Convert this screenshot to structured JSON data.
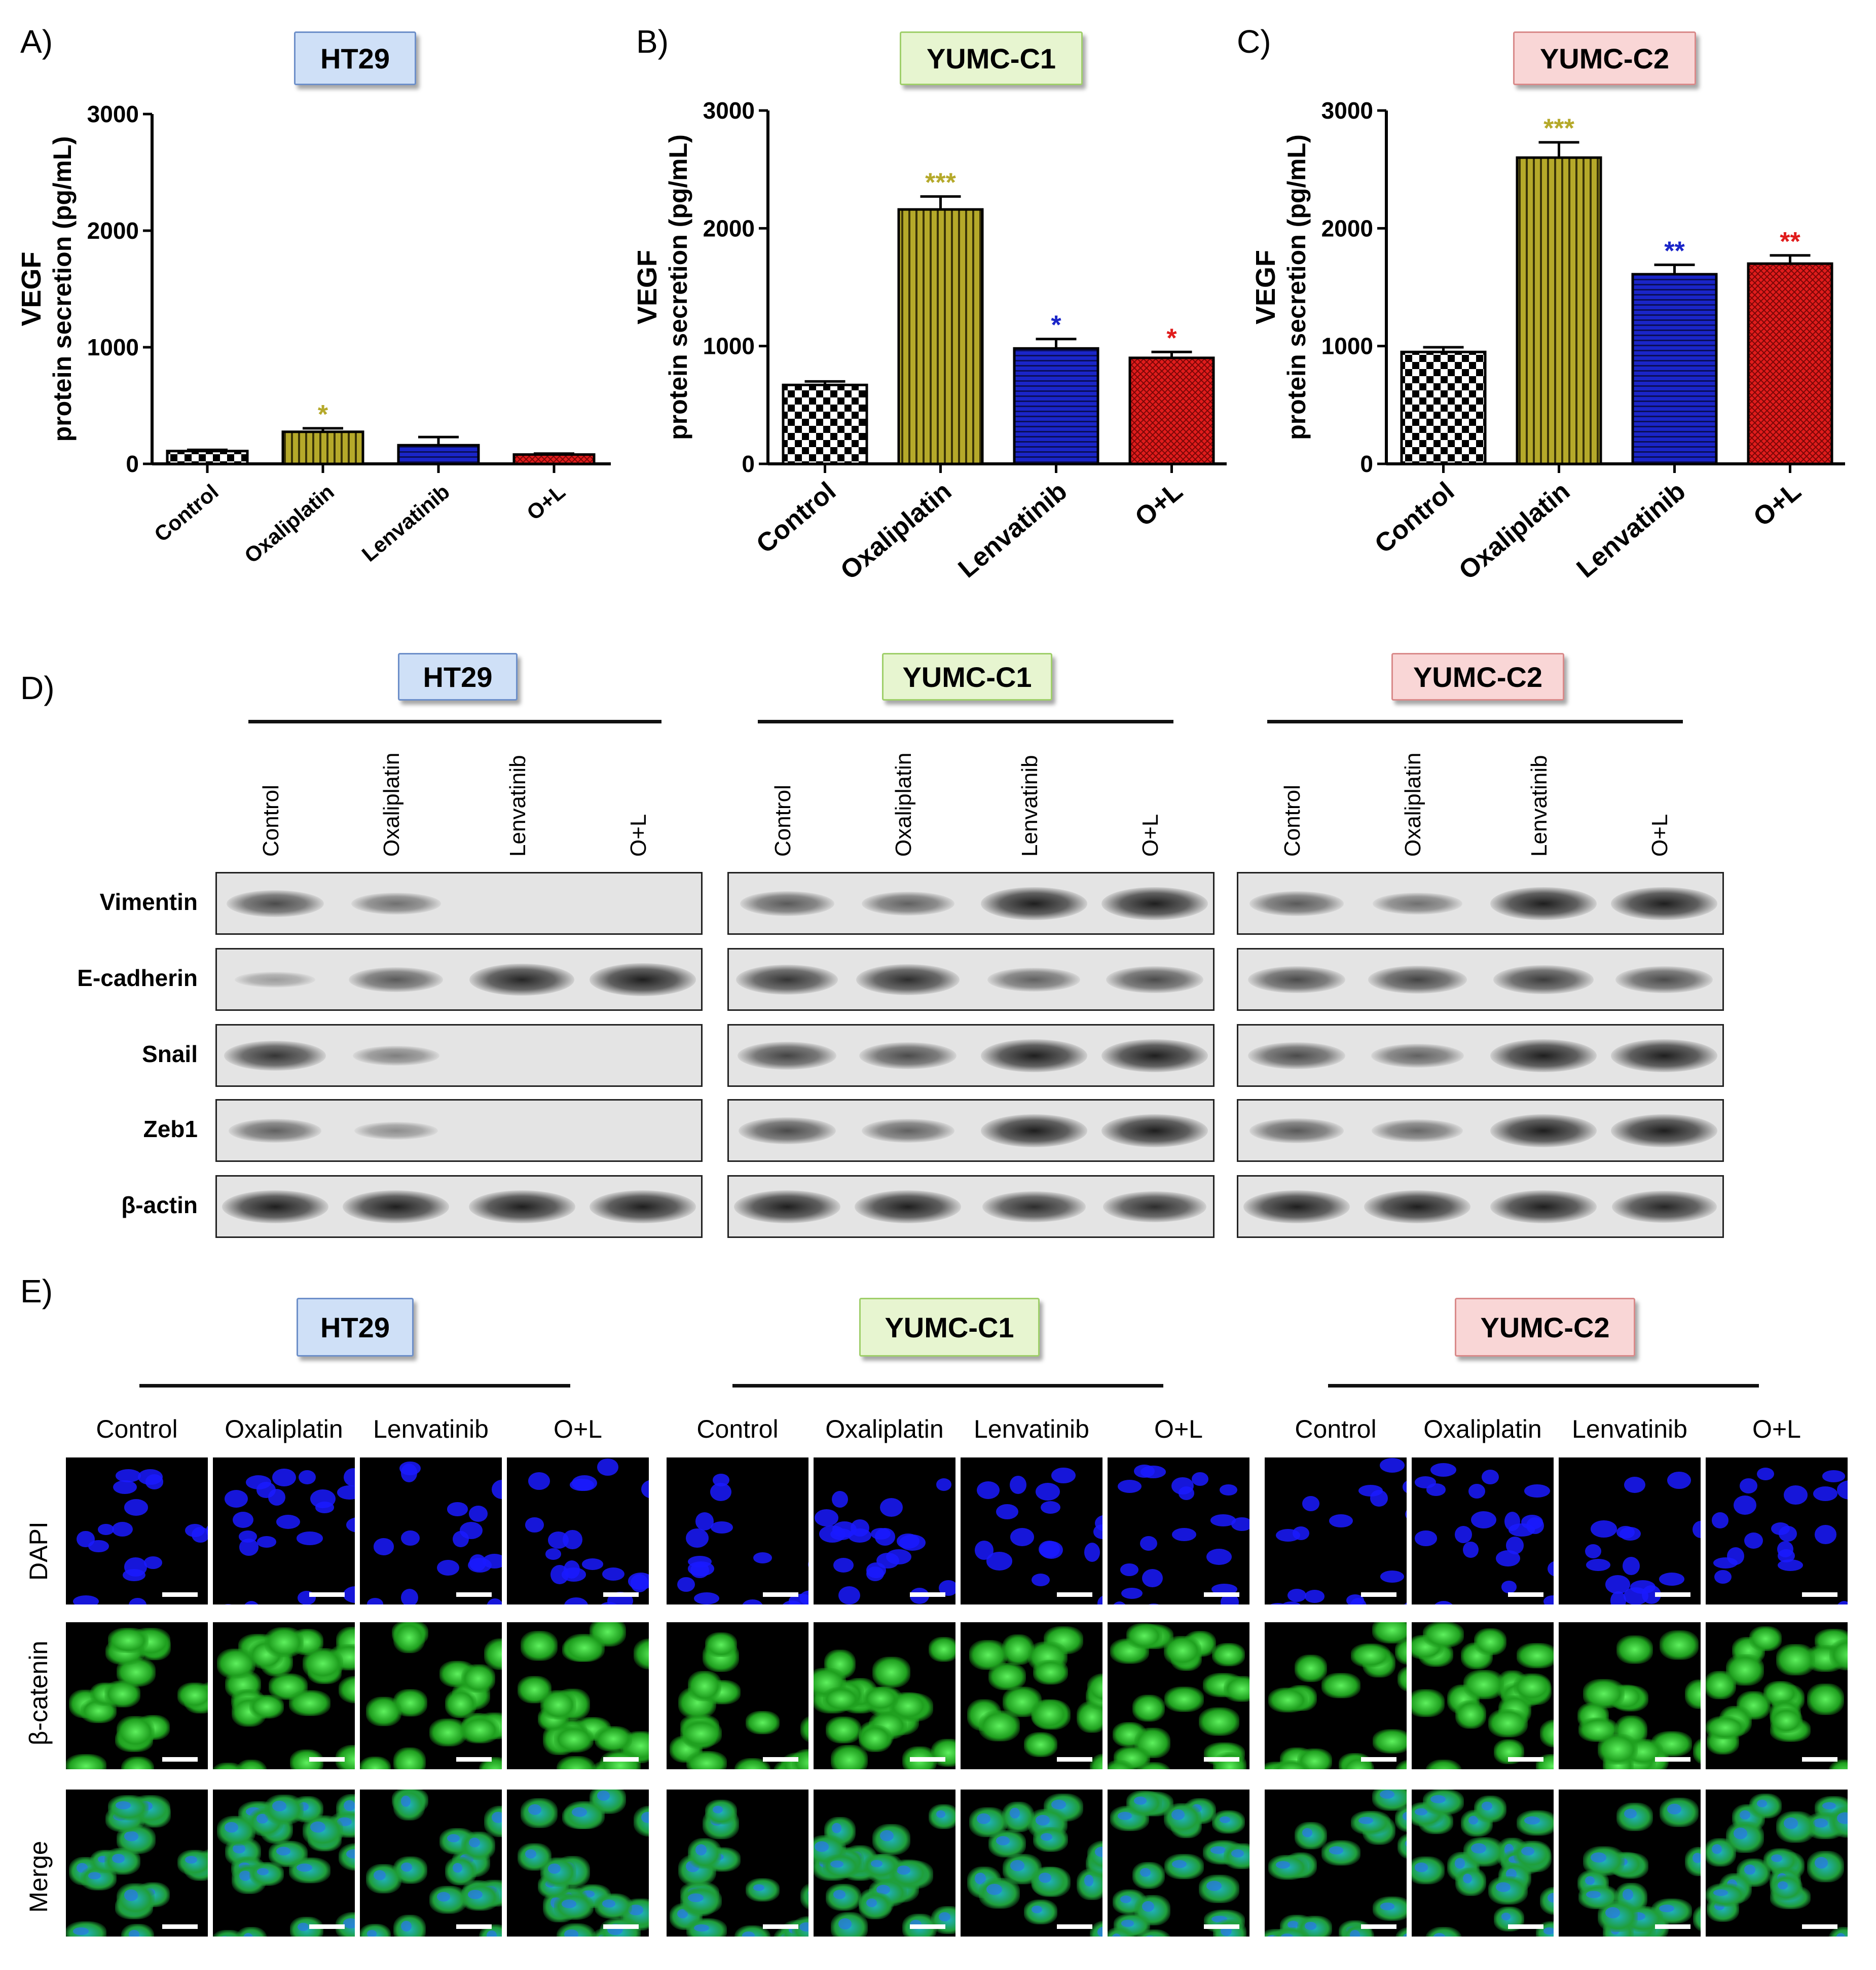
{
  "colors": {
    "control": "#ffffff",
    "oxaliplatin": "#b5a92a",
    "lenvatinib": "#1a25c8",
    "o_plus_l": "#e01c1c",
    "ht29_box": "#cfe0f7",
    "ht29_border": "#6d8fc9",
    "yumc1_box": "#e7f5d0",
    "yumc1_border": "#9fcf6a",
    "yumc2_box": "#f9d6d6",
    "yumc2_border": "#d98a8a",
    "dapi": "#1a1aff",
    "catenin": "#22c422"
  },
  "panels": {
    "A": "A)",
    "B": "B)",
    "C": "C)",
    "D": "D)",
    "E": "E)"
  },
  "cell_lines": [
    "HT29",
    "YUMC-C1",
    "YUMC-C2"
  ],
  "chart_data": [
    {
      "type": "bar",
      "title": "HT29",
      "ylabel_line1": "VEGF",
      "ylabel_line2": "protein secretion (pg/mL)",
      "categories": [
        "Control",
        "Oxaliplatin",
        "Lenvatinib",
        "O+L"
      ],
      "values": [
        110,
        275,
        160,
        80
      ],
      "errors": [
        10,
        30,
        70,
        8
      ],
      "significance": [
        "",
        "*",
        "",
        ""
      ],
      "ylim": [
        0,
        3000
      ],
      "yticks": [
        "0",
        "1000",
        "2000",
        "3000"
      ]
    },
    {
      "type": "bar",
      "title": "YUMC-C1",
      "ylabel_line1": "VEGF",
      "ylabel_line2": "protein secretion (pg/mL)",
      "categories": [
        "Control",
        "Oxaliplatin",
        "Lenvatinib",
        "O+L"
      ],
      "values": [
        670,
        2160,
        980,
        900
      ],
      "errors": [
        30,
        110,
        80,
        50
      ],
      "significance": [
        "",
        "***",
        "*",
        "*"
      ],
      "ylim": [
        0,
        3000
      ],
      "yticks": [
        "0",
        "1000",
        "2000",
        "3000"
      ]
    },
    {
      "type": "bar",
      "title": "YUMC-C2",
      "ylabel_line1": "VEGF",
      "ylabel_line2": "protein secretion (pg/mL)",
      "categories": [
        "Control",
        "Oxaliplatin",
        "Lenvatinib",
        "O+L"
      ],
      "values": [
        950,
        2600,
        1610,
        1700
      ],
      "errors": [
        40,
        130,
        80,
        70
      ],
      "significance": [
        "",
        "***",
        "**",
        "**"
      ],
      "ylim": [
        0,
        3000
      ],
      "yticks": [
        "0",
        "1000",
        "2000",
        "3000"
      ]
    }
  ],
  "western": {
    "lanes": [
      "Control",
      "Oxaliplatin",
      "Lenvatinib",
      "O+L"
    ],
    "proteins": [
      "Vimentin",
      "E-cadherin",
      "Snail",
      "Zeb1",
      "β-actin"
    ],
    "intensity": {
      "HT29": [
        [
          0.7,
          0.45,
          0.0,
          0.0
        ],
        [
          0.15,
          0.6,
          0.95,
          1.0
        ],
        [
          0.85,
          0.35,
          0.0,
          0.0
        ],
        [
          0.55,
          0.25,
          0.0,
          0.0
        ],
        [
          1.0,
          1.0,
          1.0,
          1.0
        ]
      ],
      "YUMC-C1": [
        [
          0.6,
          0.55,
          1.0,
          1.0
        ],
        [
          0.85,
          0.9,
          0.55,
          0.7
        ],
        [
          0.75,
          0.7,
          1.0,
          1.0
        ],
        [
          0.7,
          0.55,
          1.0,
          1.0
        ],
        [
          1.0,
          1.0,
          0.9,
          0.9
        ]
      ],
      "YUMC-C2": [
        [
          0.6,
          0.45,
          1.0,
          1.0
        ],
        [
          0.7,
          0.75,
          0.8,
          0.7
        ],
        [
          0.7,
          0.55,
          1.0,
          1.0
        ],
        [
          0.6,
          0.5,
          1.0,
          1.0
        ],
        [
          1.0,
          1.0,
          1.0,
          0.95
        ]
      ]
    }
  },
  "immunofluorescence": {
    "conditions": [
      "Control",
      "Oxaliplatin",
      "Lenvatinib",
      "O+L"
    ],
    "rows": [
      "DAPI",
      "β-catenin",
      "Merge"
    ]
  }
}
